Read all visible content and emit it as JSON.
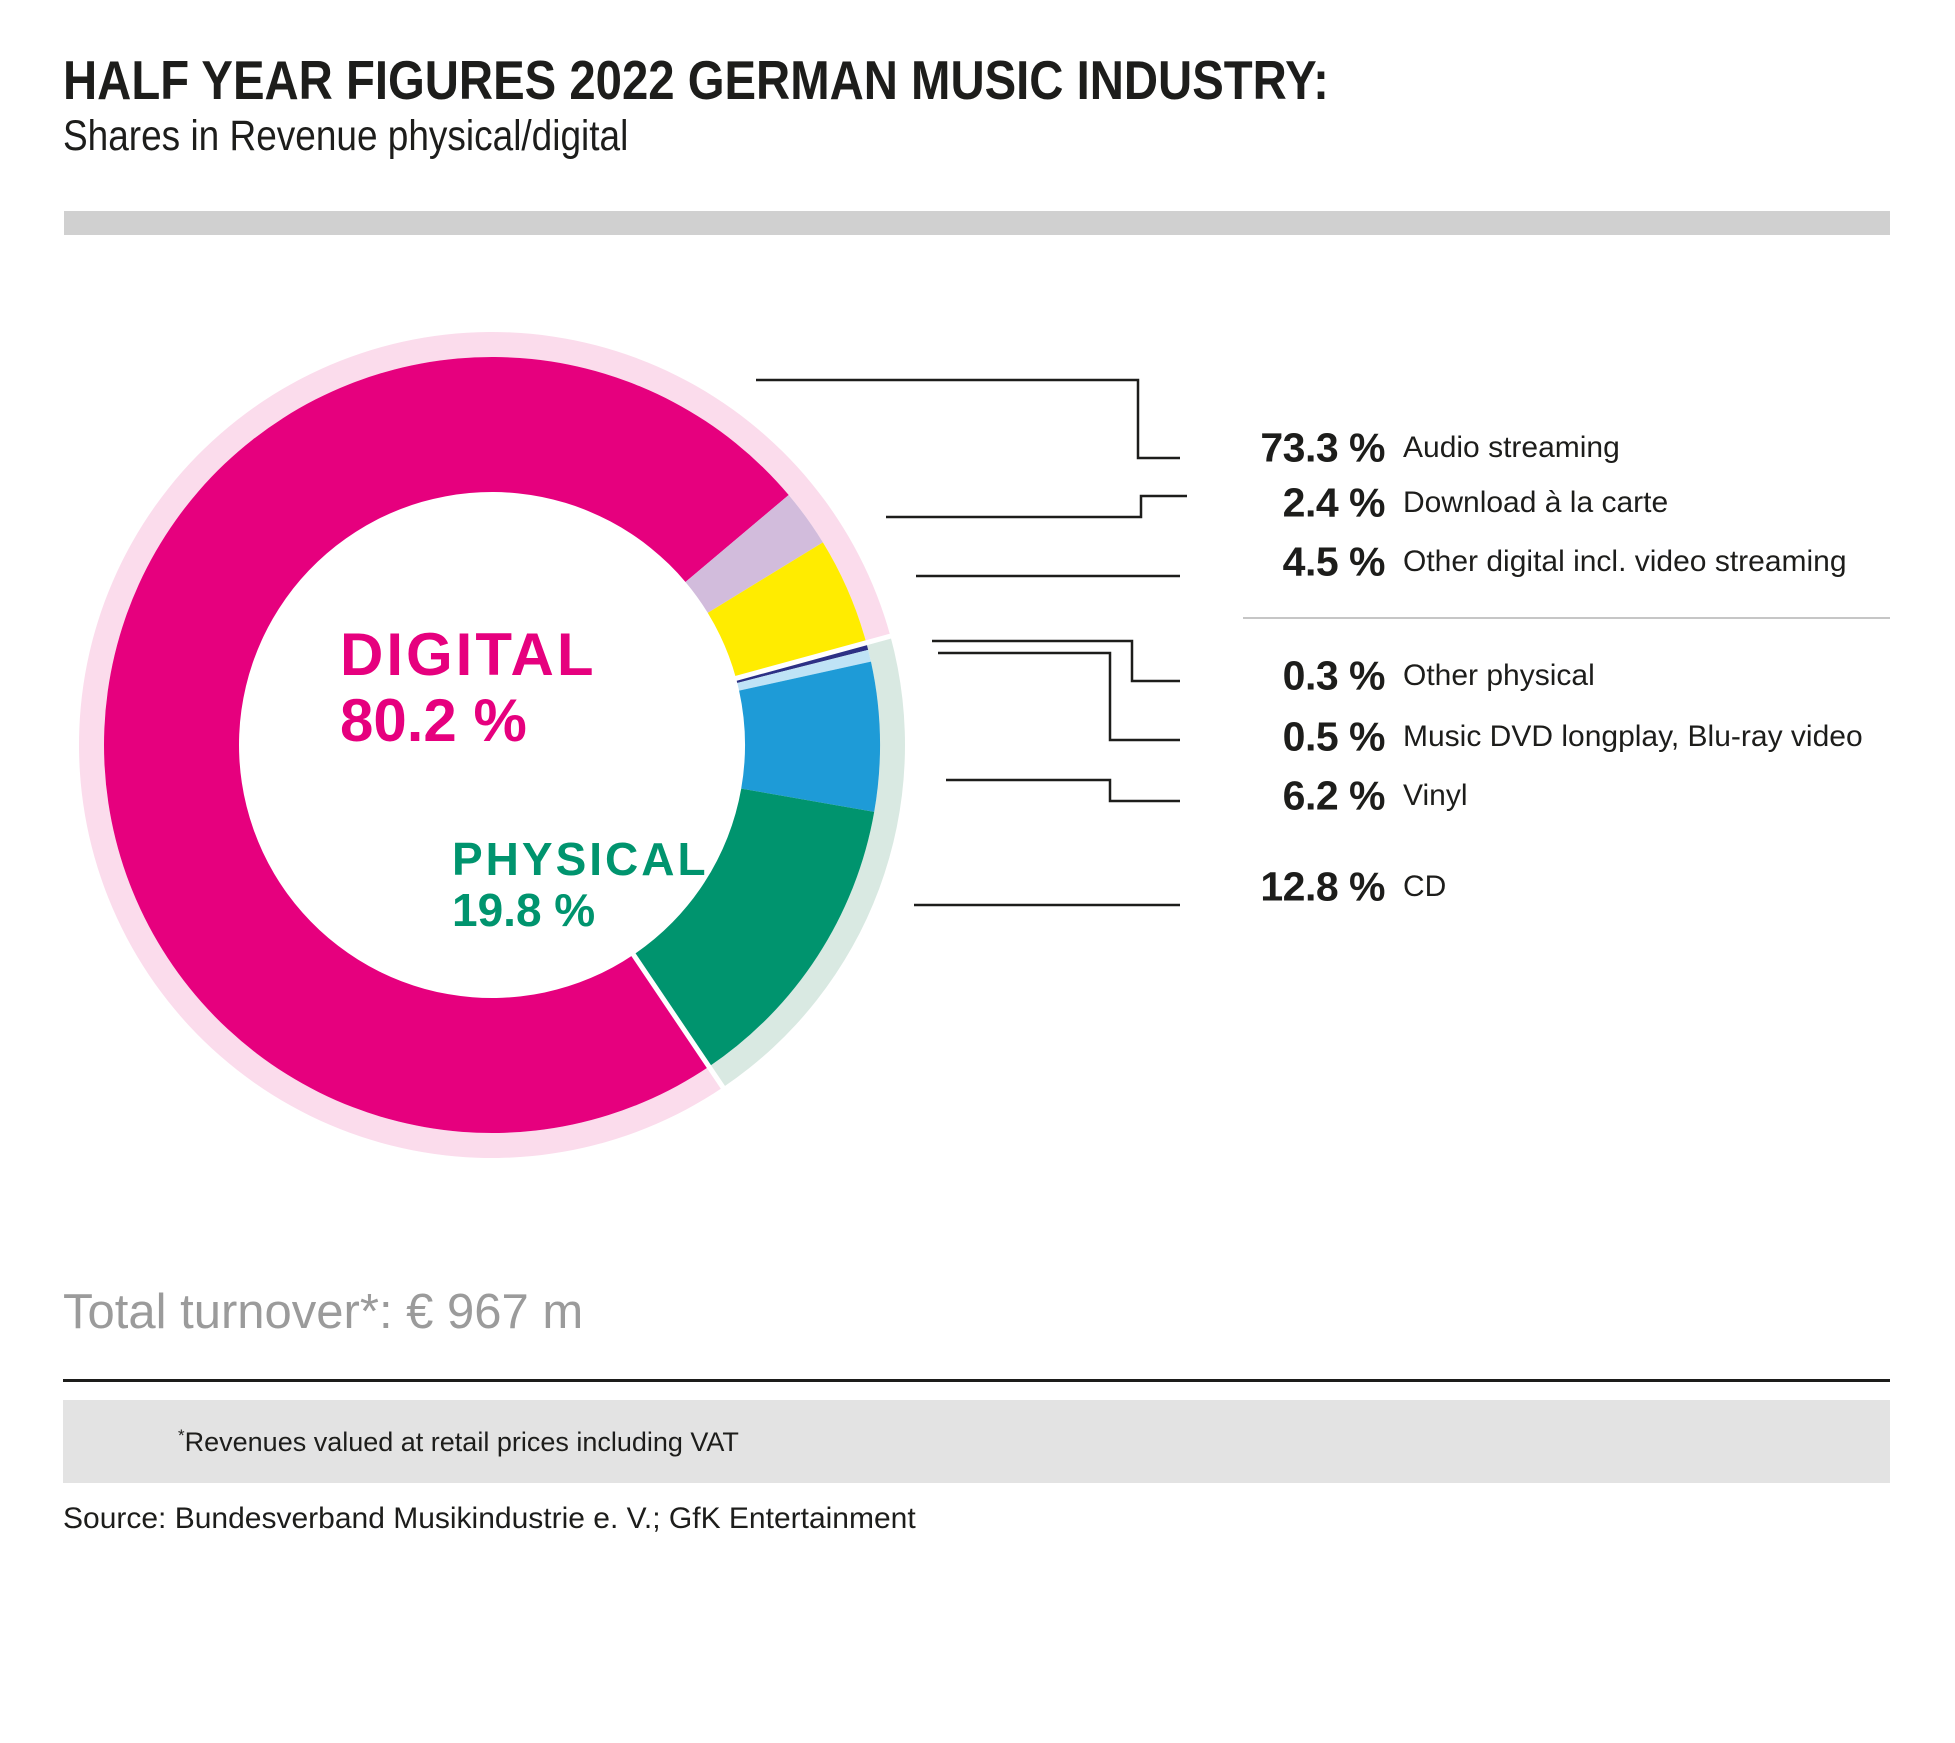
{
  "header": {
    "title": "HALF YEAR FIGURES 2022 GERMAN MUSIC INDUSTRY:",
    "subtitle": "Shares in Revenue physical/digital"
  },
  "chart_data": {
    "type": "pie",
    "subtype": "donut",
    "title": "Shares in Revenue physical/digital, half year 2022, German music industry",
    "unit": "%",
    "start_angle_deg": 146,
    "legend_position": "right",
    "groups": [
      {
        "id": "digital",
        "name": "DIGITAL",
        "display": "80.2 %",
        "value": 80.2,
        "color": "#e6007e",
        "ring_color": "#fbdcec"
      },
      {
        "id": "physical",
        "name": "PHYSICAL",
        "display": "19.8 %",
        "value": 19.8,
        "color": "#00946e",
        "ring_color": "#d9e9e2"
      }
    ],
    "segments": [
      {
        "label": "Audio streaming",
        "value": 73.3,
        "display": "73.3 %",
        "color": "#e6007e",
        "group": "digital"
      },
      {
        "label": "Download à la carte",
        "value": 2.4,
        "display": "2.4 %",
        "color": "#d2bcdc",
        "group": "digital"
      },
      {
        "label": "Other digital incl. video streaming",
        "value": 4.5,
        "display": "4.5 %",
        "color": "#ffec00",
        "group": "digital"
      },
      {
        "label": "Other physical",
        "value": 0.3,
        "display": "0.3 %",
        "color": "#2d3185",
        "group": "physical"
      },
      {
        "label": "Music DVD longplay, Blu-ray video",
        "value": 0.5,
        "display": "0.5 %",
        "color": "#bfe3f6",
        "group": "physical"
      },
      {
        "label": "Vinyl",
        "value": 6.2,
        "display": "6.2 %",
        "color": "#1e9bd7",
        "group": "physical"
      },
      {
        "label": "CD",
        "value": 12.8,
        "display": "12.8 %",
        "color": "#00946e",
        "group": "physical"
      }
    ]
  },
  "total": {
    "text": "Total turnover*: € 967 m"
  },
  "footer": {
    "footnote_marker": "*",
    "footnote": "Revenues valued at retail prices including VAT",
    "source": "Source: Bundesverband Musikindustrie e. V.; GfK Entertainment"
  },
  "theme": {
    "accent_digital": "#e6007e",
    "accent_physical": "#00946e",
    "text_dark": "#1d1d1b",
    "text_muted": "#9b9b9b",
    "top_bar_gray": "#d0d0d0",
    "footband_gray": "#e3e3e3",
    "legend_divider_gray": "#c6c6c6"
  }
}
